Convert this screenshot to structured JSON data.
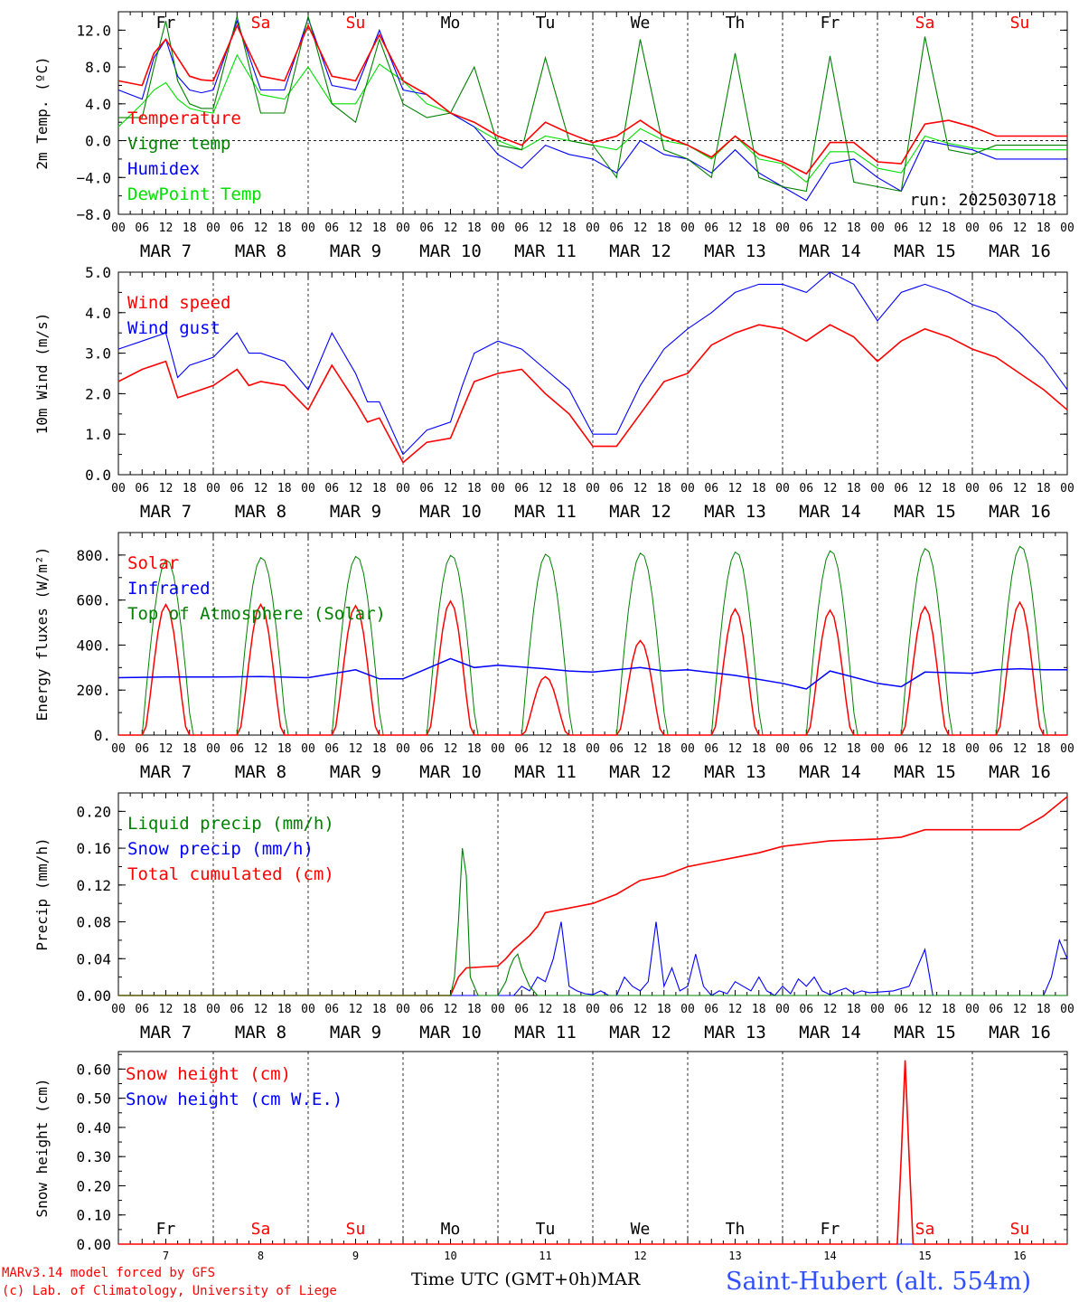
{
  "footer": {
    "model_line": "MARv3.14 model forced by GFS",
    "credit_line": "(c) Lab. of Climatology, University of Liege",
    "time_axis_label": "Time UTC (GMT+0h)",
    "month_label": "MAR",
    "station": "Saint-Hubert (alt. 554m)"
  },
  "colors": {
    "red": "#ff0000",
    "green": "#008000",
    "blue": "#0000ff",
    "lightgreen": "#00e000",
    "black": "#000000",
    "weekend": "#ff0000"
  },
  "days": {
    "names": [
      "Fr",
      "Sa",
      "Su",
      "Mo",
      "Tu",
      "We",
      "Th",
      "Fr",
      "Sa",
      "Su"
    ],
    "weekend": [
      false,
      true,
      true,
      false,
      false,
      false,
      false,
      false,
      true,
      true
    ],
    "date_labels": [
      "MAR  7",
      "MAR  8",
      "MAR  9",
      "MAR 10",
      "MAR 11",
      "MAR 12",
      "MAR 13",
      "MAR 14",
      "MAR 15",
      "MAR 16"
    ],
    "date_numbers": [
      "7",
      "8",
      "9",
      "10",
      "11",
      "12",
      "13",
      "14",
      "15",
      "16"
    ],
    "hour_labels": [
      "00",
      "06",
      "12",
      "18"
    ],
    "final_hour_label": "00"
  },
  "chart_data": [
    {
      "id": "temp",
      "type": "line",
      "ylabel": "2m Temp. (ºC)",
      "ylim": [
        -8,
        14
      ],
      "yticks": [
        -8,
        -4,
        0,
        4,
        8,
        12
      ],
      "ytick_labels": [
        "−8.0",
        "−4.0",
        "0.0",
        "4.0",
        "8.0",
        "12.0"
      ],
      "annotation": "run: 2025030718",
      "x_unit": "hours since MAR 7 00 UTC",
      "series": [
        {
          "name": "Temperature",
          "color": "#ff0000",
          "x": [
            0,
            6,
            9,
            12,
            15,
            18,
            21,
            24,
            30,
            36,
            42,
            48,
            54,
            60,
            66,
            72,
            78,
            84,
            90,
            96,
            102,
            108,
            114,
            120,
            126,
            132,
            138,
            144,
            150,
            156,
            162,
            168,
            174,
            180,
            186,
            192,
            198,
            204,
            210,
            216,
            222,
            228,
            234,
            240
          ],
          "y": [
            6.5,
            6,
            9.5,
            11,
            9,
            7,
            6.6,
            6.5,
            12.5,
            7,
            6.5,
            12.5,
            7,
            6.5,
            11.5,
            6.5,
            5,
            3,
            2,
            0.5,
            -0.5,
            2,
            0.8,
            -0.2,
            0.5,
            2.2,
            0.5,
            -0.5,
            -1.8,
            0.5,
            -1.5,
            -2.3,
            -3.6,
            -0.2,
            -0.2,
            -2.3,
            -2.5,
            1.8,
            2.2,
            1.5,
            0.5,
            0.5,
            0.5,
            0.5
          ]
        },
        {
          "name": "Vigne temp",
          "color": "#008000",
          "x": [
            0,
            6,
            9,
            12,
            15,
            18,
            21,
            24,
            30,
            36,
            42,
            48,
            54,
            60,
            66,
            72,
            78,
            84,
            90,
            96,
            102,
            108,
            114,
            120,
            126,
            132,
            138,
            144,
            150,
            156,
            162,
            168,
            174,
            180,
            186,
            192,
            198,
            204,
            210,
            216,
            222,
            228,
            234,
            240
          ],
          "y": [
            2.5,
            2.5,
            8,
            13,
            6.5,
            4,
            3.5,
            3.5,
            13.5,
            3,
            3,
            13.5,
            4,
            2,
            11,
            4,
            2.5,
            3,
            8,
            -0.5,
            -1,
            9,
            0,
            -0.5,
            -4,
            11,
            -1,
            -2,
            -4,
            9.5,
            -4,
            -5,
            -5.5,
            9.2,
            -4.5,
            -5,
            -5.5,
            11.3,
            -1,
            -1.5,
            -0.5,
            -0.5,
            -0.5,
            -0.5
          ]
        },
        {
          "name": "Humidex",
          "color": "#0000ff",
          "x": [
            0,
            6,
            9,
            12,
            15,
            18,
            21,
            24,
            30,
            36,
            42,
            48,
            54,
            60,
            66,
            72,
            78,
            84,
            90,
            96,
            102,
            108,
            114,
            120,
            126,
            132,
            138,
            144,
            150,
            156,
            162,
            168,
            174,
            180,
            186,
            192,
            198,
            204,
            210,
            216,
            222,
            228,
            234,
            240
          ],
          "y": [
            5.5,
            4.5,
            9,
            11,
            7,
            5.5,
            5.2,
            5.5,
            13,
            5.5,
            5.5,
            13.3,
            6,
            5.5,
            12,
            5.5,
            5,
            3,
            1.5,
            -1.5,
            -3,
            -0.5,
            -1.5,
            -2,
            -3.5,
            0,
            -1.5,
            -2,
            -3.5,
            -1,
            -3.5,
            -5,
            -6.5,
            -2.5,
            -2,
            -4,
            -5.5,
            0,
            -0.5,
            -1,
            -2,
            -2,
            -2,
            -2
          ]
        },
        {
          "name": "DewPoint Temp",
          "color": "#00e000",
          "x": [
            0,
            6,
            9,
            12,
            15,
            18,
            21,
            24,
            30,
            36,
            42,
            48,
            54,
            60,
            66,
            72,
            78,
            84,
            90,
            96,
            102,
            108,
            114,
            120,
            126,
            132,
            138,
            144,
            150,
            156,
            162,
            168,
            174,
            180,
            186,
            192,
            198,
            204,
            210,
            216,
            222,
            228,
            234,
            240
          ],
          "y": [
            1.5,
            4,
            5.5,
            6.3,
            4.5,
            3.5,
            3.2,
            3,
            9.3,
            5,
            4.5,
            8,
            4,
            4,
            8.3,
            6.5,
            4,
            3,
            1.5,
            0,
            -1,
            0.5,
            0,
            -0.5,
            -1,
            1.3,
            0,
            -0.5,
            -2,
            0.5,
            -2,
            -2.5,
            -4.5,
            -1.2,
            -1.2,
            -3,
            -3.5,
            0.5,
            -0.3,
            -0.8,
            -1,
            -1,
            -1,
            -1
          ]
        }
      ]
    },
    {
      "id": "wind",
      "type": "line",
      "ylabel": "10m Wind (m/s)",
      "ylim": [
        0,
        5
      ],
      "yticks": [
        0,
        1,
        2,
        3,
        4,
        5
      ],
      "ytick_labels": [
        "0.0",
        "1.0",
        "2.0",
        "3.0",
        "4.0",
        "5.0"
      ],
      "x_unit": "hours since MAR 7 00 UTC",
      "series": [
        {
          "name": "Wind speed",
          "color": "#ff0000",
          "x": [
            0,
            6,
            12,
            15,
            18,
            24,
            30,
            33,
            36,
            42,
            48,
            54,
            60,
            63,
            66,
            72,
            78,
            84,
            87,
            90,
            96,
            102,
            108,
            114,
            120,
            126,
            132,
            138,
            144,
            150,
            156,
            162,
            168,
            174,
            180,
            186,
            192,
            198,
            204,
            210,
            216,
            222,
            228,
            234,
            240
          ],
          "y": [
            2.3,
            2.6,
            2.8,
            1.9,
            2,
            2.2,
            2.6,
            2.2,
            2.3,
            2.2,
            1.6,
            2.7,
            1.8,
            1.3,
            1.4,
            0.3,
            0.8,
            0.9,
            1.6,
            2.3,
            2.5,
            2.6,
            2.0,
            1.5,
            0.7,
            0.7,
            1.5,
            2.3,
            2.5,
            3.2,
            3.5,
            3.7,
            3.6,
            3.3,
            3.7,
            3.4,
            2.8,
            3.3,
            3.6,
            3.4,
            3.1,
            2.9,
            2.5,
            2.1,
            1.6
          ]
        },
        {
          "name": "Wind gust",
          "color": "#0000ff",
          "x": [
            0,
            6,
            12,
            15,
            18,
            24,
            30,
            33,
            36,
            42,
            48,
            54,
            60,
            63,
            66,
            72,
            78,
            84,
            87,
            90,
            96,
            102,
            108,
            114,
            120,
            126,
            132,
            138,
            144,
            150,
            156,
            162,
            168,
            174,
            180,
            186,
            192,
            198,
            204,
            210,
            216,
            222,
            228,
            234,
            240
          ],
          "y": [
            3.1,
            3.3,
            3.5,
            2.4,
            2.7,
            2.9,
            3.5,
            3.0,
            3.0,
            2.8,
            2.1,
            3.5,
            2.5,
            1.8,
            1.8,
            0.5,
            1.1,
            1.3,
            2.2,
            3.0,
            3.3,
            3.1,
            2.6,
            2.1,
            1.0,
            1.0,
            2.2,
            3.1,
            3.6,
            4.0,
            4.5,
            4.7,
            4.7,
            4.5,
            5.0,
            4.7,
            3.8,
            4.5,
            4.7,
            4.5,
            4.2,
            4.0,
            3.5,
            2.9,
            2.1
          ]
        }
      ]
    },
    {
      "id": "energy",
      "type": "line",
      "ylabel": "Energy fluxes (W/m²)",
      "ylim": [
        0,
        900
      ],
      "yticks": [
        0,
        200,
        400,
        600,
        800
      ],
      "ytick_labels": [
        "0.",
        "200.",
        "400.",
        "600.",
        "800."
      ],
      "x_unit": "hours since MAR 7 00 UTC",
      "daily_peaks": {
        "solar": [
          580,
          580,
          575,
          595,
          260,
          420,
          560,
          555,
          570,
          590
        ],
        "toa_solar": [
          780,
          790,
          795,
          800,
          805,
          810,
          815,
          820,
          830,
          840
        ]
      },
      "series": [
        {
          "name": "Solar",
          "color": "#ff0000"
        },
        {
          "name": "Infrared",
          "color": "#0000ff",
          "x": [
            0,
            12,
            24,
            36,
            48,
            60,
            66,
            72,
            84,
            90,
            96,
            108,
            114,
            120,
            132,
            138,
            144,
            156,
            168,
            174,
            180,
            192,
            198,
            204,
            216,
            222,
            228,
            234,
            240
          ],
          "y": [
            255,
            258,
            258,
            260,
            255,
            290,
            250,
            250,
            340,
            300,
            310,
            295,
            285,
            280,
            300,
            285,
            290,
            265,
            230,
            205,
            285,
            230,
            215,
            280,
            275,
            290,
            295,
            290,
            290
          ]
        },
        {
          "name": "Top of Atmosphere (Solar)",
          "color": "#008000"
        }
      ]
    },
    {
      "id": "precip",
      "type": "line",
      "ylabel": "Precip (mm/h)",
      "ylim": [
        0,
        0.22
      ],
      "yticks": [
        0,
        0.04,
        0.08,
        0.12,
        0.16,
        0.2
      ],
      "ytick_labels": [
        "0.00",
        "0.04",
        "0.08",
        "0.12",
        "0.16",
        "0.20"
      ],
      "x_unit": "hours since MAR 7 00 UTC",
      "series": [
        {
          "name": "Liquid precip (mm/h)",
          "color": "#008000",
          "x": [
            0,
            84,
            85,
            86,
            87,
            88,
            89,
            91,
            96,
            98,
            99,
            100,
            101,
            102,
            103,
            104,
            105,
            106,
            110,
            240
          ],
          "y": [
            0,
            0,
            0.02,
            0.08,
            0.16,
            0.13,
            0.02,
            0,
            0,
            0.015,
            0.03,
            0.04,
            0.045,
            0.03,
            0.02,
            0.01,
            0.005,
            0,
            0,
            0
          ]
        },
        {
          "name": "Snow precip (mm/h)",
          "color": "#0000ff",
          "x": [
            0,
            100,
            102,
            104,
            106,
            108,
            110,
            112,
            114,
            116,
            118,
            120,
            122,
            124,
            126,
            128,
            130,
            132,
            134,
            136,
            138,
            140,
            142,
            144,
            146,
            148,
            150,
            152,
            154,
            156,
            158,
            160,
            162,
            164,
            166,
            168,
            170,
            172,
            174,
            176,
            178,
            180,
            182,
            184,
            186,
            188,
            190,
            196,
            200,
            204,
            206,
            208,
            210,
            212,
            214,
            216,
            218,
            222,
            226,
            230,
            234,
            236,
            238,
            240
          ],
          "y": [
            0,
            0,
            0.01,
            0.005,
            0.02,
            0.015,
            0.04,
            0.08,
            0.01,
            0.005,
            0.002,
            0.001,
            0.005,
            0,
            0,
            0.02,
            0.01,
            0.005,
            0.015,
            0.08,
            0.01,
            0.03,
            0.005,
            0.01,
            0.045,
            0.01,
            0,
            0.005,
            0.002,
            0.015,
            0.01,
            0.005,
            0.02,
            0.005,
            0,
            0.01,
            0.002,
            0.018,
            0.01,
            0.02,
            0.005,
            0.001,
            0.005,
            0.008,
            0.002,
            0.005,
            0.003,
            0.005,
            0.01,
            0.05,
            0,
            0,
            0,
            0,
            0,
            0,
            0,
            0,
            0,
            0,
            0,
            0.02,
            0.06,
            0.04
          ]
        },
        {
          "name": "Total cumulated (cm)",
          "color": "#ff0000",
          "x": [
            0,
            84,
            86,
            88,
            96,
            98,
            100,
            104,
            106,
            108,
            114,
            120,
            126,
            132,
            138,
            144,
            150,
            156,
            162,
            168,
            174,
            180,
            192,
            198,
            204,
            210,
            216,
            222,
            228,
            234,
            240
          ],
          "y": [
            0,
            0,
            0.02,
            0.03,
            0.032,
            0.04,
            0.05,
            0.065,
            0.075,
            0.09,
            0.095,
            0.1,
            0.11,
            0.125,
            0.13,
            0.14,
            0.145,
            0.15,
            0.155,
            0.162,
            0.165,
            0.168,
            0.17,
            0.172,
            0.18,
            0.18,
            0.18,
            0.18,
            0.18,
            0.195,
            0.216
          ]
        }
      ]
    },
    {
      "id": "snow",
      "type": "line",
      "ylabel": "Snow height (cm)",
      "ylim": [
        0,
        0.66
      ],
      "yticks": [
        0,
        0.1,
        0.2,
        0.3,
        0.4,
        0.5,
        0.6
      ],
      "ytick_labels": [
        "0.00",
        "0.10",
        "0.20",
        "0.30",
        "0.40",
        "0.50",
        "0.60"
      ],
      "x_unit": "hours since MAR 7 00 UTC",
      "series": [
        {
          "name": "Snow height (cm)",
          "color": "#ff0000",
          "x": [
            0,
            197,
            198,
            199,
            200,
            201,
            240
          ],
          "y": [
            0,
            0,
            0.3,
            0.63,
            0.3,
            0,
            0
          ]
        },
        {
          "name": "Snow height (cm W.E.)",
          "color": "#0000ff",
          "x": [
            0,
            240
          ],
          "y": [
            0,
            0
          ]
        }
      ]
    }
  ]
}
